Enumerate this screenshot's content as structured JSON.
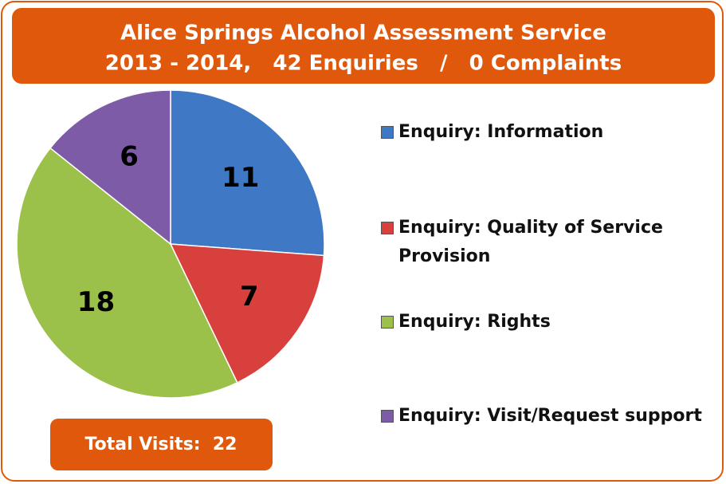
{
  "chart_data": {
    "type": "pie",
    "title": "Alice Springs Alcohol Assessment Service",
    "subtitle": "2013 - 2014,   42 Enquiries   /   0 Complaints",
    "categories": [
      "Enquiry: Information",
      "Enquiry: Quality of Service Provision",
      "Enquiry: Rights",
      "Enquiry: Visit/Request support"
    ],
    "values": [
      11,
      7,
      18,
      6
    ],
    "colors": [
      "#3f78c4",
      "#d8403d",
      "#9cc14b",
      "#7d5ba6"
    ],
    "annotation": "Total Visits:  22",
    "legend": "right"
  }
}
